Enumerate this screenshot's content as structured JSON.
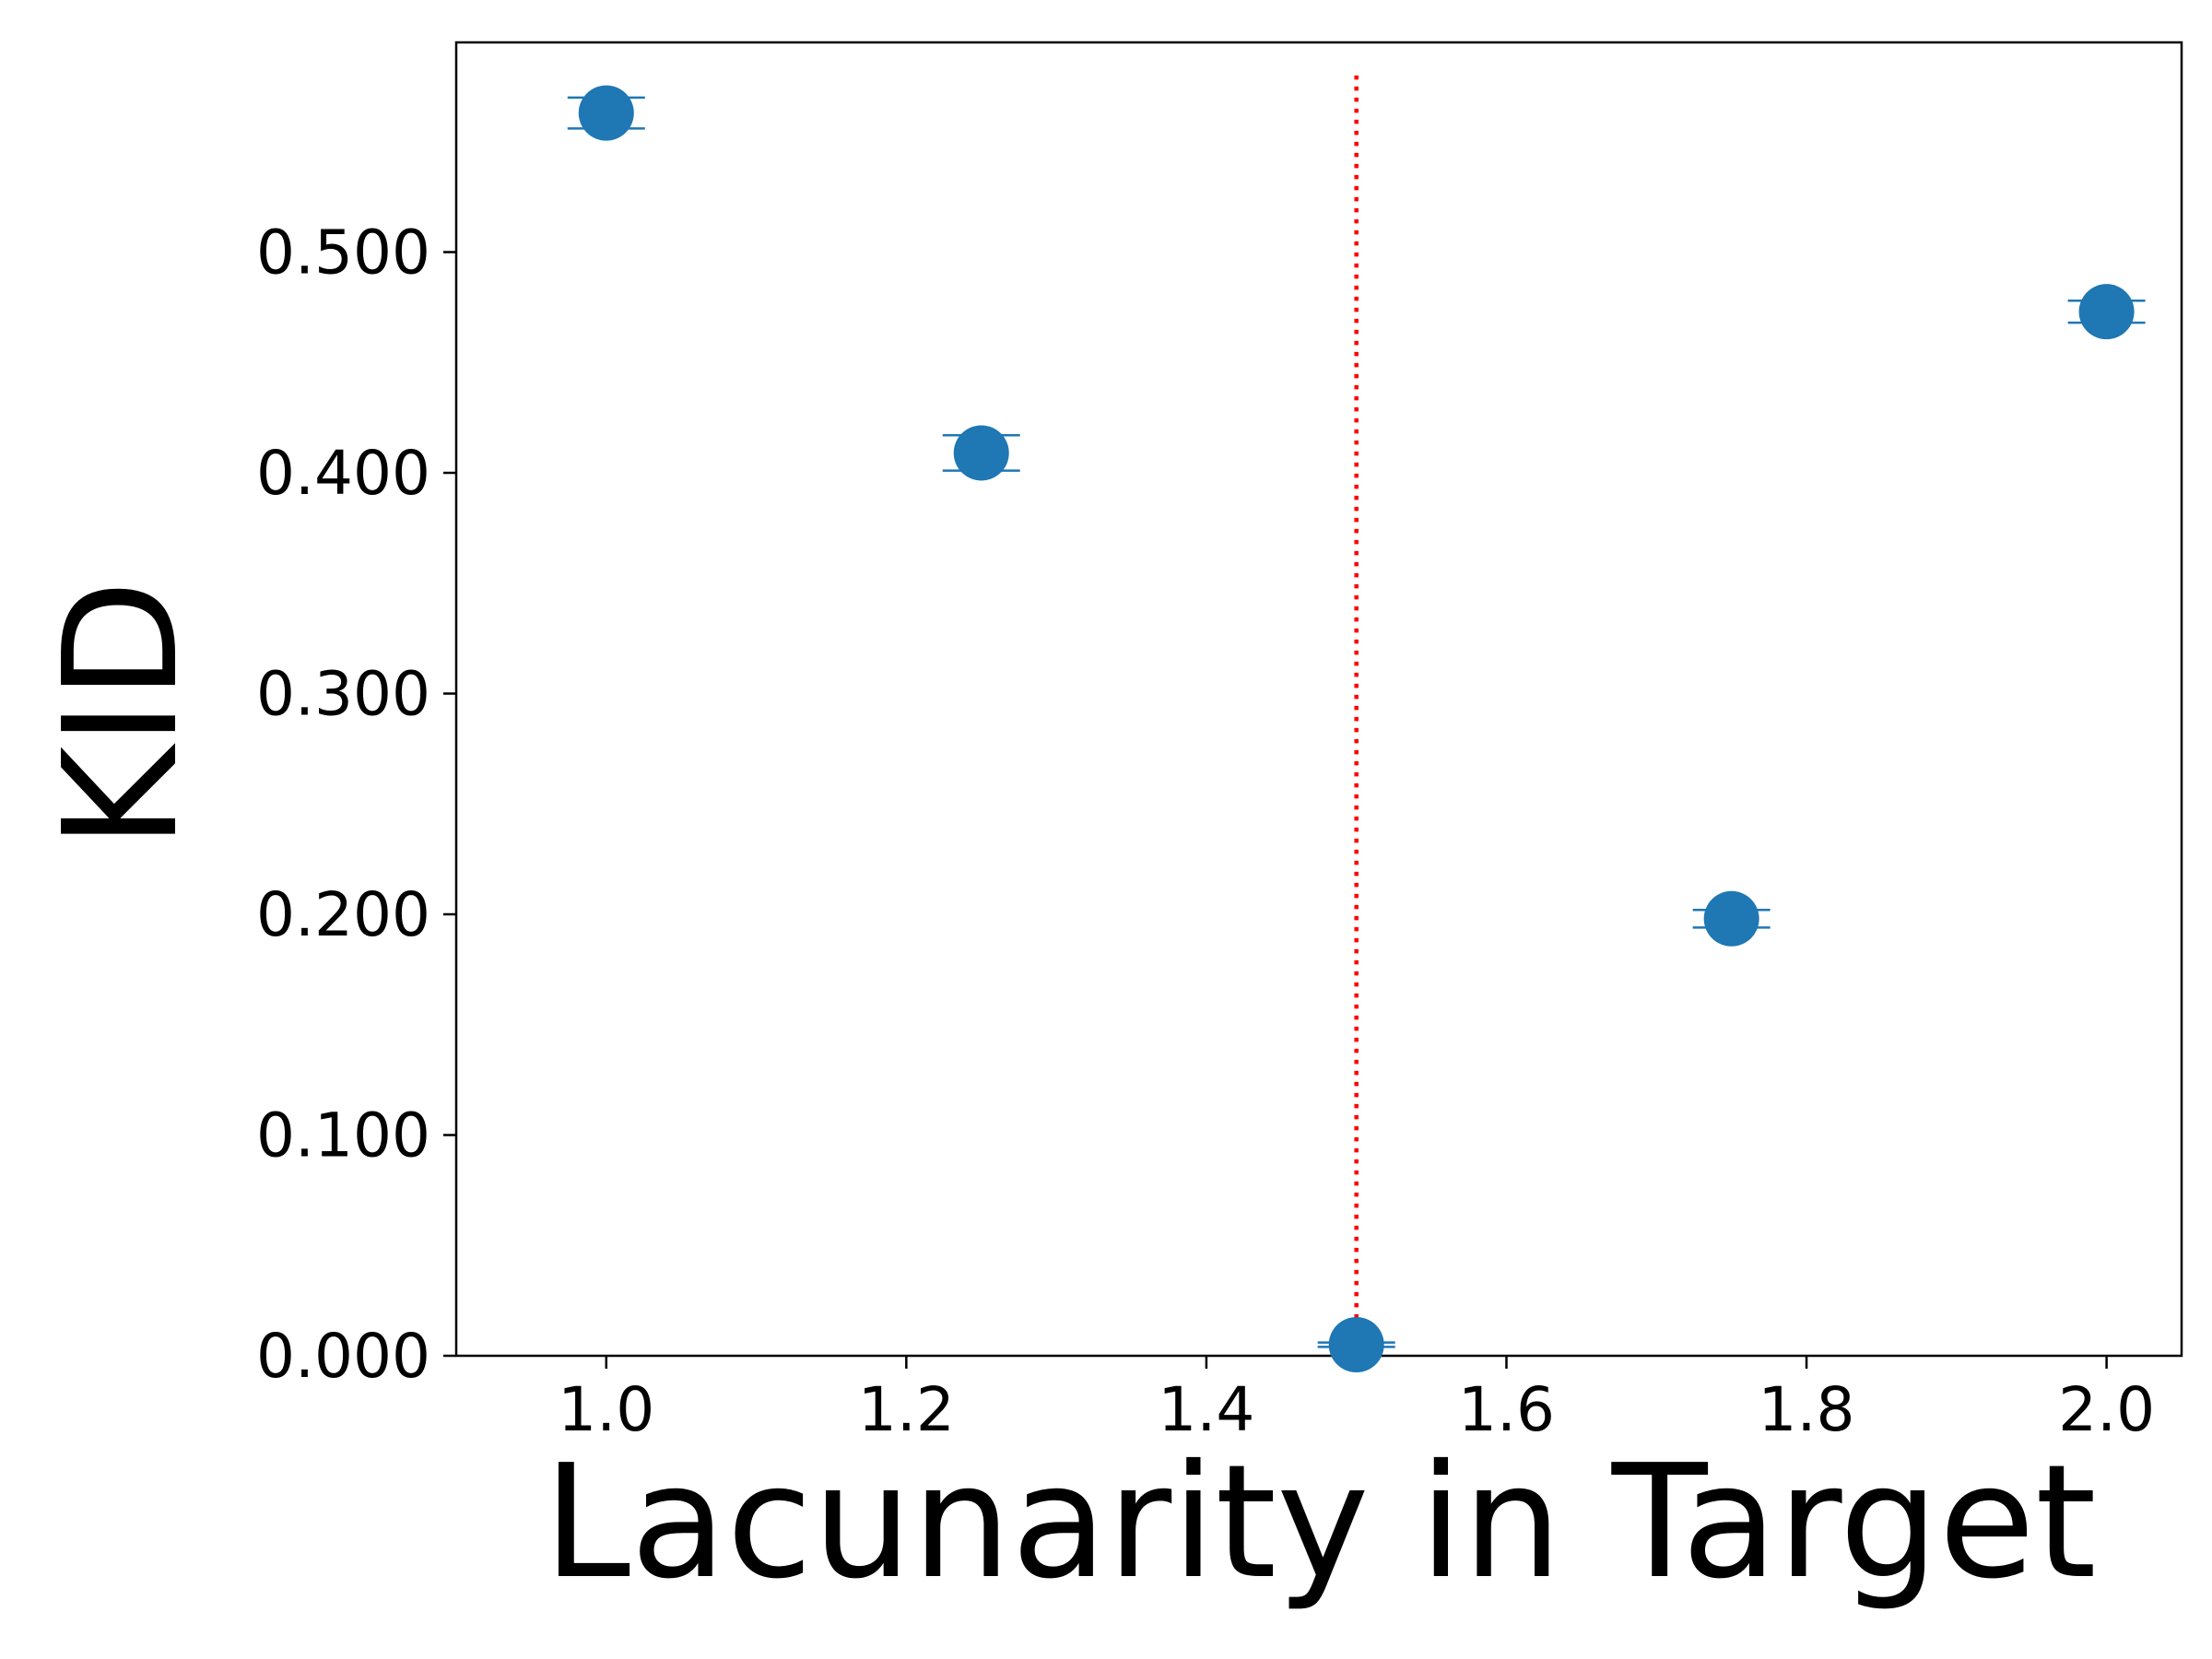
{
  "chart_data": {
    "type": "scatter",
    "xlabel": "Lacunarity in Target",
    "ylabel": "KID",
    "xlim": [
      0.9,
      2.05
    ],
    "ylim": [
      0.0,
      0.595
    ],
    "x_ticks": [
      1.0,
      1.2,
      1.4,
      1.6,
      1.8,
      2.0
    ],
    "x_tick_labels": [
      "1.0",
      "1.2",
      "1.4",
      "1.6",
      "1.8",
      "2.0"
    ],
    "y_ticks": [
      0.0,
      0.1,
      0.2,
      0.3,
      0.4,
      0.5
    ],
    "y_tick_labels": [
      "0.000",
      "0.100",
      "0.200",
      "0.300",
      "0.400",
      "0.500"
    ],
    "grid": false,
    "series": [
      {
        "points": [
          {
            "x": 1.0,
            "y": 0.563,
            "err": 0.007
          },
          {
            "x": 1.25,
            "y": 0.409,
            "err": 0.008
          },
          {
            "x": 1.5,
            "y": 0.005,
            "err": 0.001
          },
          {
            "x": 1.75,
            "y": 0.198,
            "err": 0.004
          },
          {
            "x": 2.0,
            "y": 0.473,
            "err": 0.005
          }
        ],
        "color": "#1f77b4"
      }
    ],
    "reference_line": {
      "x": 1.5,
      "y_range": [
        0.0,
        0.58
      ],
      "color": "#ff0000",
      "style": "dotted"
    }
  }
}
